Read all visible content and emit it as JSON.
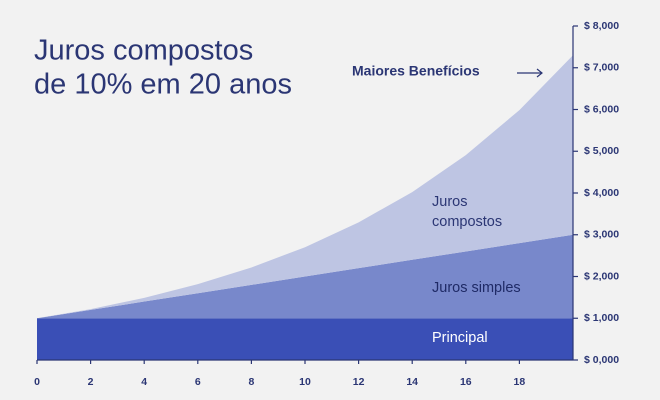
{
  "chart_data": {
    "type": "stacked_area",
    "title": [
      "Juros compostos",
      "de 10% em 20 anos"
    ],
    "annotation": "Maiores Benefícios",
    "x": [
      0,
      2,
      4,
      6,
      8,
      10,
      12,
      14,
      16,
      18,
      20
    ],
    "series": [
      {
        "name": "Principal",
        "color": "#3a4fb6",
        "label_color": "#ffffff",
        "values": [
          1000,
          1000,
          1000,
          1000,
          1000,
          1000,
          1000,
          1000,
          1000,
          1000,
          1000
        ]
      },
      {
        "name": "Juros simples",
        "color": "#7888cb",
        "label_color": "#1f2a66",
        "values": [
          0,
          200,
          400,
          600,
          800,
          1000,
          1200,
          1400,
          1600,
          1800,
          2000
        ]
      },
      {
        "name": "Juros compostos",
        "color": "#bec5e3",
        "label_color": "#2b3674",
        "values": [
          0,
          20,
          89,
          216,
          416,
          702,
          1097,
          1622,
          2307,
          3186,
          4300
        ]
      }
    ],
    "xlim": [
      0,
      20
    ],
    "xticks": [
      0,
      2,
      4,
      6,
      8,
      10,
      12,
      14,
      16,
      18
    ],
    "ylim": [
      0,
      8000
    ],
    "yticks": [
      {
        "value": 0,
        "label": "$ 0,000"
      },
      {
        "value": 1000,
        "label": "$ 1,000"
      },
      {
        "value": 2000,
        "label": "$ 2,000"
      },
      {
        "value": 3000,
        "label": "$ 3,000"
      },
      {
        "value": 4000,
        "label": "$ 4,000"
      },
      {
        "value": 5000,
        "label": "$ 5,000"
      },
      {
        "value": 6000,
        "label": "$ 6,000"
      },
      {
        "value": 7000,
        "label": "$ 7,000"
      },
      {
        "value": 8000,
        "label": "$ 8,000"
      }
    ],
    "y_axis_side": "right"
  }
}
